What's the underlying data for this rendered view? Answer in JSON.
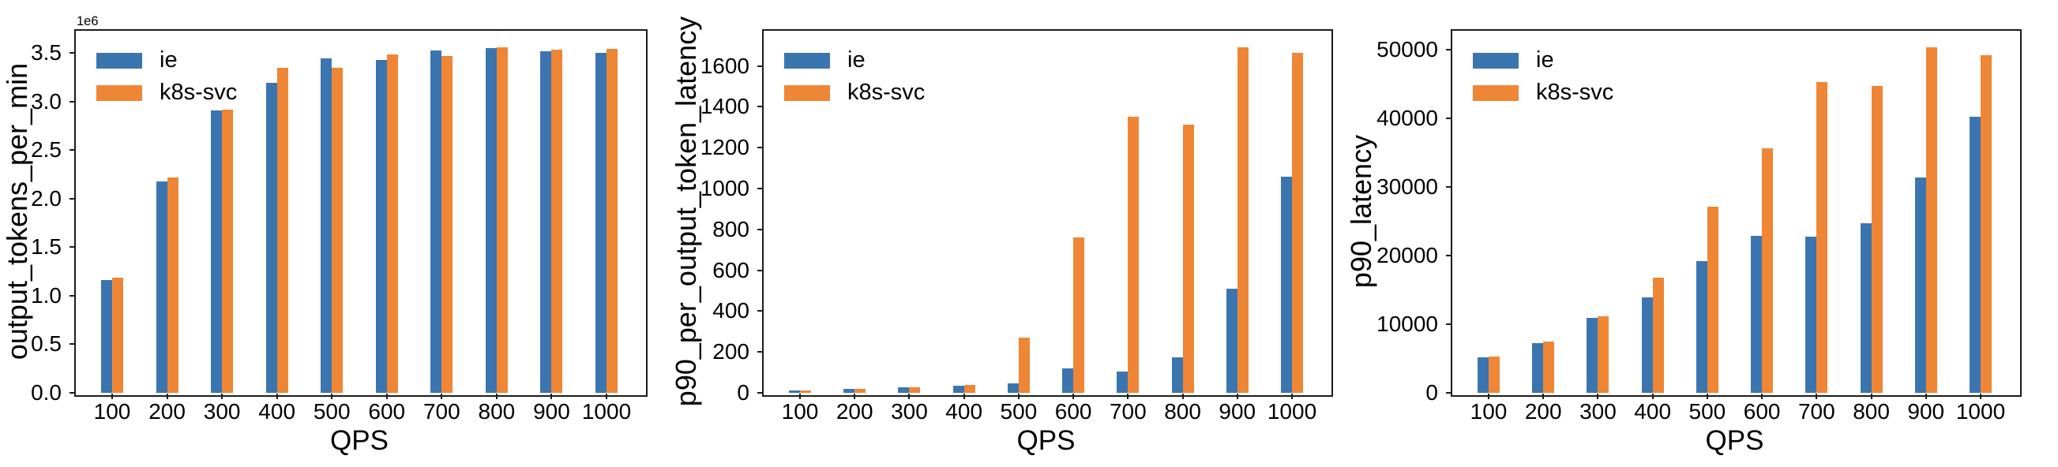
{
  "style": {
    "background": "#ffffff",
    "axis_color": "#1c1c1c",
    "text_color": "#000000",
    "series_colors": {
      "ie": "#3b75af",
      "k8s-svc": "#ee8636"
    }
  },
  "legend": {
    "entries": [
      "ie",
      "k8s-svc"
    ]
  },
  "chart_data": [
    {
      "type": "bar",
      "title": "",
      "xlabel": "QPS",
      "ylabel": "output_tokens_per_min",
      "offset_text": "1e6",
      "categories": [
        "100",
        "200",
        "300",
        "400",
        "500",
        "600",
        "700",
        "800",
        "900",
        "1000"
      ],
      "series": [
        {
          "name": "ie",
          "color": "#3b75af",
          "values": [
            1160000,
            2175000,
            2905000,
            3192000,
            3447000,
            3428000,
            3523000,
            3551000,
            3515000,
            3504000
          ]
        },
        {
          "name": "k8s-svc",
          "color": "#ee8636",
          "values": [
            1190000,
            2221000,
            2916000,
            3347000,
            3347000,
            3482000,
            3466000,
            3559000,
            3531000,
            3542000
          ]
        }
      ],
      "ylim": [
        0,
        3737000
      ],
      "yticks": [
        0,
        500000,
        1000000,
        1500000,
        2000000,
        2500000,
        3000000,
        3500000
      ],
      "ytick_labels": [
        "0.0",
        "0.5",
        "1.0",
        "1.5",
        "2.0",
        "2.5",
        "3.0",
        "3.5"
      ],
      "legend_position": "upper left",
      "grid": false
    },
    {
      "type": "bar",
      "title": "",
      "xlabel": "QPS",
      "ylabel": "p90_per_output_token_latency",
      "offset_text": "",
      "categories": [
        "100",
        "200",
        "300",
        "400",
        "500",
        "600",
        "700",
        "800",
        "900",
        "1000"
      ],
      "series": [
        {
          "name": "ie",
          "color": "#3b75af",
          "values": [
            12,
            19,
            27,
            36,
            46,
            121,
            105,
            175,
            510,
            1057
          ]
        },
        {
          "name": "k8s-svc",
          "color": "#ee8636",
          "values": [
            12,
            19,
            27,
            40,
            269,
            760,
            1351,
            1312,
            1691,
            1664
          ]
        }
      ],
      "ylim": [
        0,
        1776
      ],
      "yticks": [
        0,
        200,
        400,
        600,
        800,
        1000,
        1200,
        1400,
        1600
      ],
      "ytick_labels": [
        "0",
        "200",
        "400",
        "600",
        "800",
        "1000",
        "1200",
        "1400",
        "1600"
      ],
      "legend_position": "upper left",
      "grid": false
    },
    {
      "type": "bar",
      "title": "",
      "xlabel": "QPS",
      "ylabel": "p90_latency",
      "offset_text": "",
      "categories": [
        "100",
        "200",
        "300",
        "400",
        "500",
        "600",
        "700",
        "800",
        "900",
        "1000"
      ],
      "series": [
        {
          "name": "ie",
          "color": "#3b75af",
          "values": [
            5190,
            7230,
            10870,
            13860,
            19160,
            22930,
            22800,
            24730,
            31340,
            40210
          ]
        },
        {
          "name": "k8s-svc",
          "color": "#ee8636",
          "values": [
            5300,
            7490,
            11140,
            16790,
            27150,
            35600,
            45310,
            44730,
            50380,
            49230
          ]
        }
      ],
      "ylim": [
        0,
        52900
      ],
      "yticks": [
        0,
        10000,
        20000,
        30000,
        40000,
        50000
      ],
      "ytick_labels": [
        "0",
        "10000",
        "20000",
        "30000",
        "40000",
        "50000"
      ],
      "legend_position": "upper left",
      "grid": false
    }
  ]
}
